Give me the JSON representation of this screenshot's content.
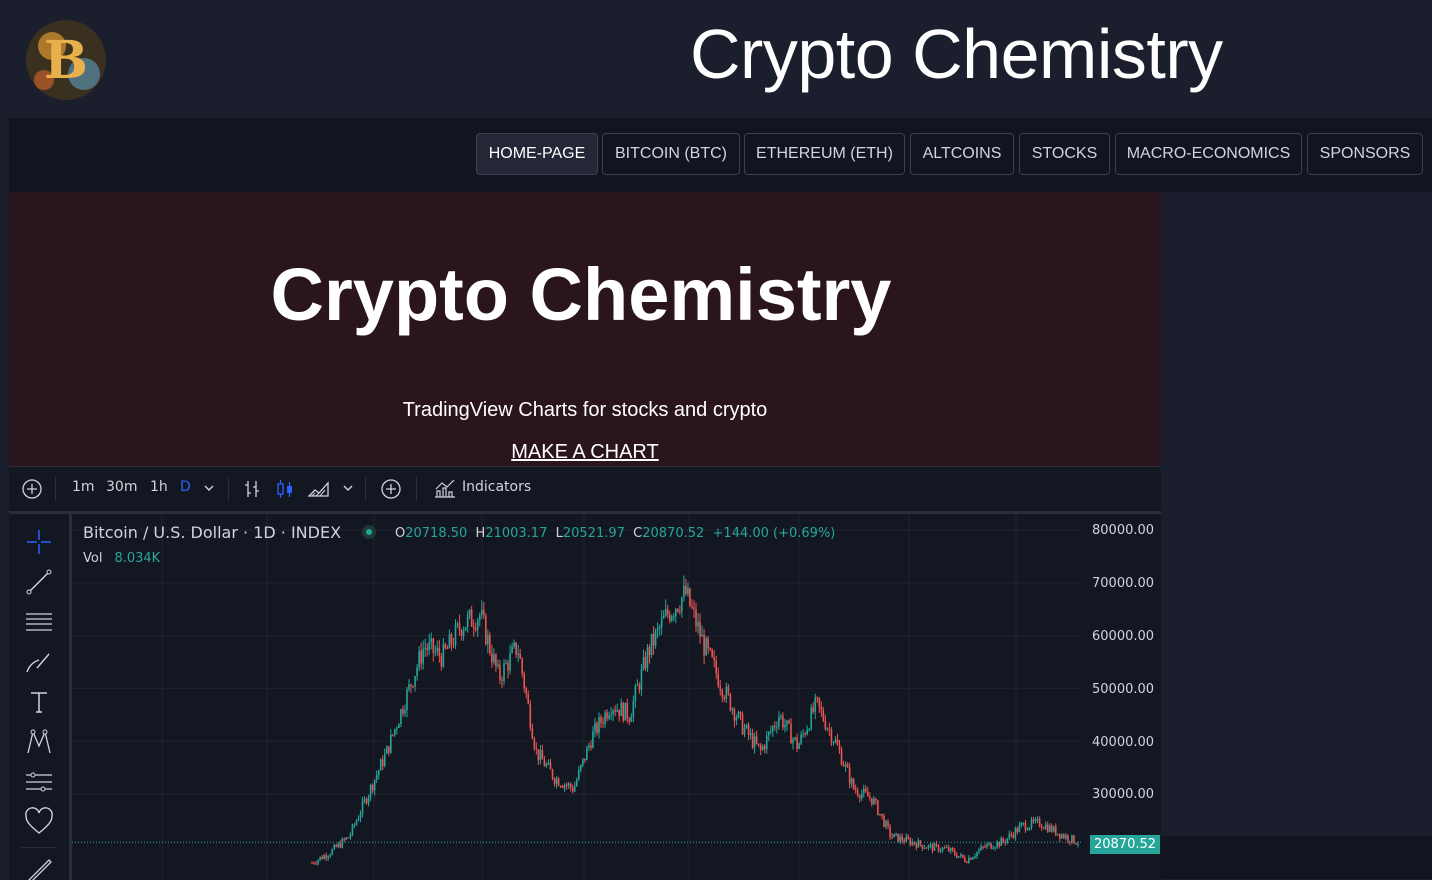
{
  "site": {
    "title": "Crypto Chemistry"
  },
  "nav": {
    "items": [
      {
        "label": "HOME-PAGE",
        "active": true
      },
      {
        "label": "BITCOIN (BTC)"
      },
      {
        "label": "ETHEREUM (ETH)"
      },
      {
        "label": "ALTCOINS"
      },
      {
        "label": "STOCKS"
      },
      {
        "label": "MACRO-ECONOMICS"
      },
      {
        "label": "SPONSORS"
      }
    ]
  },
  "hero": {
    "title": "Crypto Chemistry",
    "subtitle": "TradingView Charts for stocks and crypto",
    "cta": "MAKE A CHART"
  },
  "toolbar": {
    "intervals": [
      "1m",
      "30m",
      "1h",
      "D"
    ],
    "active_interval": "D",
    "indicators_label": "Indicators"
  },
  "legend": {
    "symbol": "Bitcoin / U.S. Dollar · 1D · INDEX",
    "open_key": "O",
    "open": "20718.50",
    "high_key": "H",
    "high": "21003.17",
    "low_key": "L",
    "low": "20521.97",
    "close_key": "C",
    "close": "20870.52",
    "change": "+144.00 (+0.69%)",
    "vol_key": "Vol",
    "vol": "8.034K"
  },
  "colors": {
    "up": "#26a69a",
    "down": "#ef5350",
    "accent": "#2962ff"
  },
  "chart_data": {
    "type": "candlestick",
    "y_ticks": [
      "80000.00",
      "70000.00",
      "60000.00",
      "50000.00",
      "40000.00",
      "30000.00"
    ],
    "ylim": [
      17000,
      81000
    ],
    "last_price": "20870.52",
    "series": [
      {
        "values": [
          17000,
          19000,
          22000,
          30000,
          38000,
          48000,
          58000,
          56000,
          62000,
          64000,
          52000,
          58000,
          38000,
          33000,
          31000,
          41000,
          47000,
          45000,
          57000,
          64000,
          68000,
          58000,
          50000,
          43000,
          38000,
          45000,
          39000,
          47000,
          40000,
          31000,
          29000,
          22000,
          21000,
          20000,
          19500,
          17500,
          20000,
          21000,
          24000,
          24500,
          22500,
          20870
        ]
      }
    ]
  }
}
